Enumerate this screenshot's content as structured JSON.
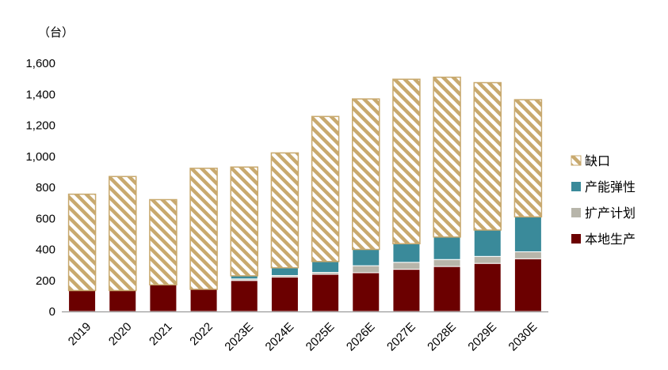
{
  "chart_data": {
    "type": "bar",
    "stacked": true,
    "unit_label": "（台）",
    "categories": [
      "2019",
      "2020",
      "2021",
      "2022",
      "2023E",
      "2024E",
      "2025E",
      "2026E",
      "2027E",
      "2028E",
      "2029E",
      "2030E"
    ],
    "series": [
      {
        "name": "本地生产",
        "color": "#6b0000",
        "values": [
          135,
          135,
          172,
          143,
          200,
          222,
          240,
          250,
          272,
          290,
          310,
          340
        ]
      },
      {
        "name": "扩产计划",
        "color": "#b7b5aa",
        "values": [
          0,
          0,
          0,
          0,
          10,
          10,
          12,
          45,
          45,
          45,
          45,
          45
        ]
      },
      {
        "name": "产能弹性",
        "color": "#3a8a9a",
        "values": [
          0,
          0,
          0,
          0,
          20,
          50,
          70,
          105,
          120,
          145,
          170,
          225
        ]
      },
      {
        "name": "缺口",
        "color": "#c8a96e",
        "pattern": "hatch",
        "values": [
          621,
          735,
          549,
          780,
          701,
          740,
          935,
          970,
          1060,
          1030,
          950,
          755
        ]
      }
    ],
    "legend_order": [
      "缺口",
      "产能弹性",
      "扩产计划",
      "本地生产"
    ],
    "legend_position": "right",
    "ylim": [
      0,
      1600
    ],
    "yticks": [
      "0",
      "200",
      "400",
      "600",
      "800",
      "1,000",
      "1,200",
      "1,400",
      "1,600"
    ],
    "ytick_values": [
      0,
      200,
      400,
      600,
      800,
      1000,
      1200,
      1400,
      1600
    ],
    "grid": false
  }
}
